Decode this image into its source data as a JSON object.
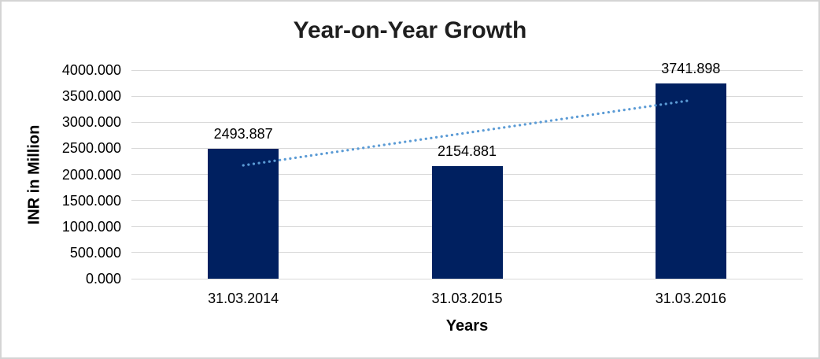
{
  "chart_data": {
    "type": "bar",
    "title": "Year-on-Year Growth",
    "xlabel": "Years",
    "ylabel": "INR in Million",
    "categories": [
      "31.03.2014",
      "31.03.2015",
      "31.03.2016"
    ],
    "values": [
      2493.887,
      2154.881,
      3741.898
    ],
    "data_labels": [
      "2493.887",
      "2154.881",
      "3741.898"
    ],
    "y_ticks": [
      "4000.000",
      "3500.000",
      "3000.000",
      "2500.000",
      "2000.000",
      "1500.000",
      "1000.000",
      "500.000",
      "0.000"
    ],
    "ylim": [
      0,
      4000
    ],
    "y_tick_step": 500,
    "grid": true,
    "legend": "none",
    "trendline": {
      "type": "linear",
      "style": "dotted"
    },
    "colors": {
      "bar": "#002060",
      "trendline": "#5B9BD5",
      "gridline": "#D9D9D9",
      "frame_border": "#D4D4D4",
      "title_text": "#1F1F1F",
      "label_text": "#000000",
      "background": "#FFFFFF"
    }
  }
}
